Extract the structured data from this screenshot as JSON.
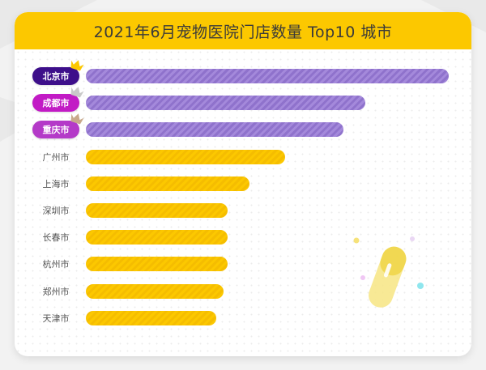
{
  "header": {
    "title": "2021年6月宠物医院门店数量 Top10 城市"
  },
  "colors": {
    "accent": "#fcc800",
    "rank1_label": "#3d0f8a",
    "rank2_label": "#c21bc5",
    "rank3_label": "#b43ac8",
    "top3_bar": "#a489db",
    "other_bar": "#fcc800",
    "crown_gold": "#fcc800",
    "crown_silver": "#c9c9c9",
    "crown_bronze": "#c8a98c"
  },
  "chart_data": {
    "type": "bar",
    "orientation": "horizontal",
    "title": "2021年6月宠物医院门店数量 Top10 城市",
    "categories": [
      "北京市",
      "成都市",
      "重庆市",
      "广州市",
      "上海市",
      "深圳市",
      "长春市",
      "杭州市",
      "郑州市",
      "天津市"
    ],
    "values": [
      100,
      77,
      71,
      55,
      45,
      39,
      39,
      39,
      38,
      36
    ],
    "xlim": [
      0,
      100
    ],
    "xlabel": "",
    "ylabel": "",
    "grid": false,
    "legend": "none",
    "highlight_top": 3
  }
}
